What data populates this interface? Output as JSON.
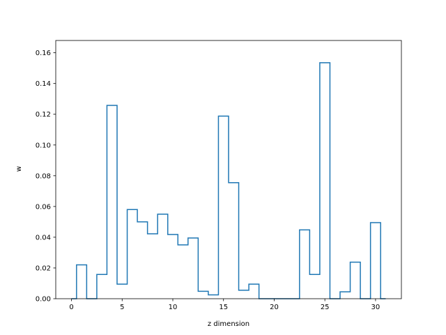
{
  "chart_data": {
    "type": "line",
    "drawstyle": "steps-mid",
    "title": "",
    "xlabel": "z dimension",
    "ylabel": "w",
    "xlim": [
      -1.55,
      32.55
    ],
    "ylim": [
      0,
      0.168
    ],
    "xticks": [
      0,
      5,
      10,
      15,
      20,
      25,
      30
    ],
    "yticks": [
      0.0,
      0.02,
      0.04,
      0.06,
      0.08,
      0.1,
      0.12,
      0.14,
      0.16
    ],
    "ytick_labels": [
      "0.00",
      "0.02",
      "0.04",
      "0.06",
      "0.08",
      "0.10",
      "0.12",
      "0.14",
      "0.16"
    ],
    "grid": false,
    "line_color": "#1f77b4",
    "series": [
      {
        "x": [
          0,
          1,
          2,
          3,
          4,
          5,
          6,
          7,
          8,
          9,
          10,
          11,
          12,
          13,
          14,
          15,
          16,
          17,
          18,
          19,
          20,
          21,
          22,
          23,
          24,
          25,
          26,
          27,
          28,
          29,
          30,
          31
        ],
        "values": [
          0.0,
          0.022,
          0.0,
          0.0158,
          0.1258,
          0.0095,
          0.058,
          0.05,
          0.0422,
          0.055,
          0.0418,
          0.035,
          0.0395,
          0.0048,
          0.0025,
          0.1188,
          0.0755,
          0.0055,
          0.0095,
          0.0,
          0.0,
          0.0,
          0.0,
          0.0448,
          0.0158,
          0.1535,
          0.0,
          0.0045,
          0.0238,
          0.0,
          0.0495,
          0.0
        ]
      }
    ]
  }
}
